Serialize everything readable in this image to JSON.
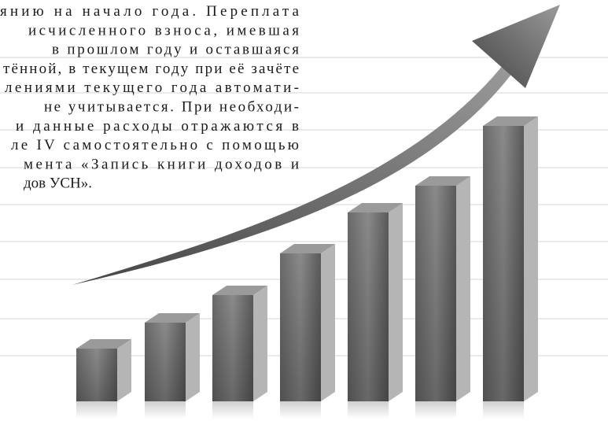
{
  "body": {
    "lines": [
      "янию на начало года. Переплата",
      "исчисленного взноса, имевшая",
      "в прошлом году и оставшаяся",
      "тённой, в текущем году при её зачёте",
      "лениями текущего года автомати-",
      "не учитывается. При необходи-",
      "и данные расходы отражаются в",
      "ле IV самостоятельно с помощью",
      "мента «Запись книги доходов и",
      "дов УСН»."
    ]
  }
}
